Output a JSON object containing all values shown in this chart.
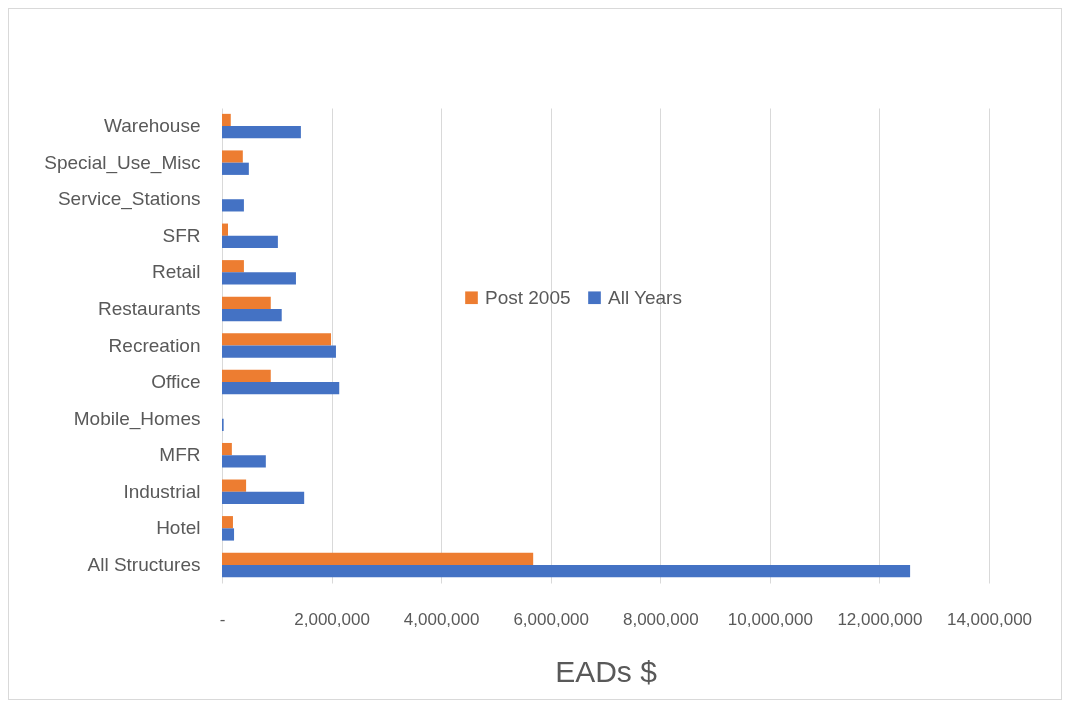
{
  "chart_data": {
    "type": "bar",
    "orientation": "horizontal",
    "xlabel": "EADs $",
    "categories": [
      "Warehouse",
      "Special_Use_Misc",
      "Service_Stations",
      "SFR",
      "Retail",
      "Restaurants",
      "Recreation",
      "Office",
      "Mobile_Homes",
      "MFR",
      "Industrial",
      "Hotel",
      "All Structures"
    ],
    "series": [
      {
        "name": "Post 2005",
        "color": "#ed7d31",
        "values": [
          160000,
          380000,
          0,
          110000,
          400000,
          890000,
          1990000,
          890000,
          0,
          180000,
          440000,
          200000,
          5680000
        ]
      },
      {
        "name": "All Years",
        "color": "#4472c4",
        "values": [
          1440000,
          490000,
          400000,
          1020000,
          1350000,
          1090000,
          2080000,
          2140000,
          30000,
          800000,
          1500000,
          220000,
          12560000
        ]
      }
    ],
    "xlim": [
      0,
      14000000
    ],
    "xticks": [
      {
        "value": 0,
        "label": "-"
      },
      {
        "value": 2000000,
        "label": "2,000,000"
      },
      {
        "value": 4000000,
        "label": "4,000,000"
      },
      {
        "value": 6000000,
        "label": "6,000,000"
      },
      {
        "value": 8000000,
        "label": "8,000,000"
      },
      {
        "value": 10000000,
        "label": "10,000,000"
      },
      {
        "value": 12000000,
        "label": "12,000,000"
      },
      {
        "value": 14000000,
        "label": "14,000,000"
      }
    ],
    "grid": "x",
    "legend": "center"
  }
}
